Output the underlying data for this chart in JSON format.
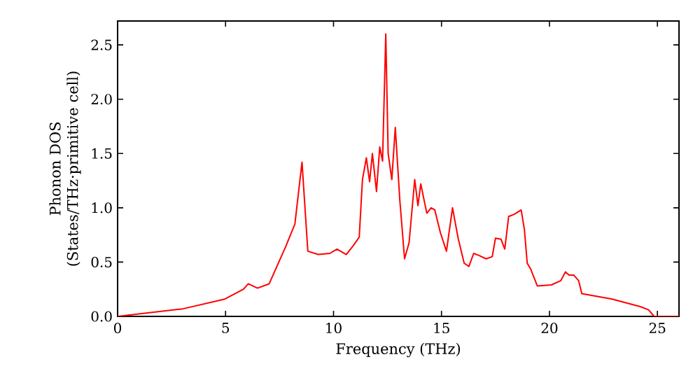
{
  "chart_data": {
    "type": "line",
    "xlabel": "Frequency (THz)",
    "ylabel": "Phonon DOS (States/THz·primitive cell)",
    "xlim": [
      0,
      26
    ],
    "ylim": [
      0,
      2.72
    ],
    "xticks": [
      0,
      5,
      10,
      15,
      20,
      25
    ],
    "yticks": [
      {
        "value": 0,
        "label": "0.0"
      },
      0.5,
      {
        "value": 1,
        "label": "1.0"
      },
      1.5,
      {
        "value": 2,
        "label": "2.0"
      },
      2.5
    ],
    "marker": "none",
    "line_style": "solid",
    "series": [
      {
        "color": "#ff0000",
        "x": [
          0,
          3.03,
          4.97,
          5.83,
          6.05,
          6.48,
          7.02,
          7.78,
          8.21,
          8.54,
          8.81,
          9.29,
          9.83,
          10.16,
          10.59,
          10.91,
          11.19,
          11.34,
          11.52,
          11.67,
          11.8,
          11.99,
          12.14,
          12.27,
          12.42,
          12.53,
          12.7,
          12.86,
          13.07,
          13.29,
          13.5,
          13.76,
          13.91,
          14.04,
          14.32,
          14.52,
          14.69,
          14.95,
          15.23,
          15.51,
          15.77,
          16.05,
          16.27,
          16.49,
          16.75,
          17.07,
          17.35,
          17.5,
          17.76,
          17.93,
          18.11,
          18.37,
          18.69,
          18.84,
          18.97,
          19.12,
          19.44,
          20.09,
          20.53,
          20.74,
          20.91,
          21.13,
          21.35,
          21.5,
          22.9,
          24.2,
          24.59,
          24.85,
          26
        ],
        "values": [
          0,
          0.07,
          0.16,
          0.25,
          0.3,
          0.26,
          0.3,
          0.64,
          0.85,
          1.42,
          0.6,
          0.57,
          0.58,
          0.62,
          0.57,
          0.65,
          0.73,
          1.26,
          1.46,
          1.24,
          1.5,
          1.15,
          1.56,
          1.43,
          2.6,
          1.5,
          1.26,
          1.74,
          1.07,
          0.53,
          0.68,
          1.26,
          1.02,
          1.22,
          0.95,
          1.0,
          0.98,
          0.77,
          0.6,
          1.0,
          0.72,
          0.49,
          0.46,
          0.58,
          0.56,
          0.53,
          0.55,
          0.72,
          0.71,
          0.62,
          0.92,
          0.94,
          0.98,
          0.8,
          0.49,
          0.44,
          0.28,
          0.29,
          0.33,
          0.41,
          0.38,
          0.38,
          0.33,
          0.21,
          0.16,
          0.09,
          0.06,
          0,
          0
        ]
      }
    ]
  }
}
